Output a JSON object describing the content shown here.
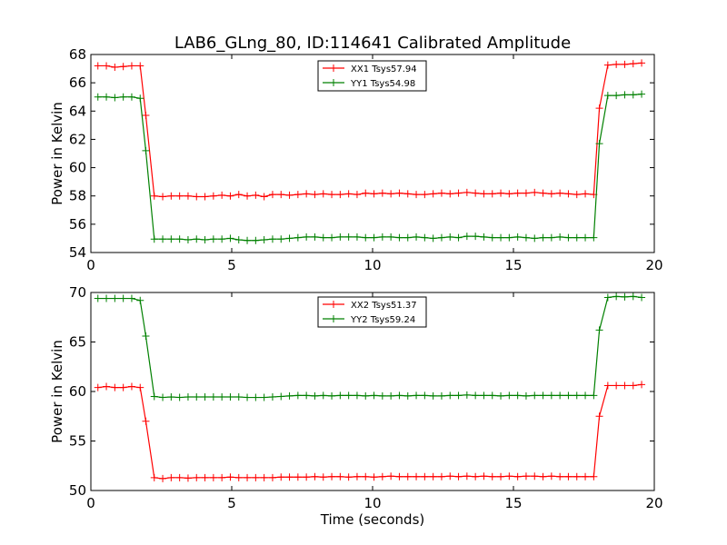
{
  "title": "LAB6_GLng_80, ID:114641 Calibrated Amplitude",
  "chart_data": [
    {
      "type": "line",
      "xlabel": "",
      "ylabel": "Power in Kelvin",
      "xlim": [
        0,
        20
      ],
      "ylim": [
        54,
        68
      ],
      "xticks": [
        0,
        5,
        10,
        15,
        20
      ],
      "yticks": [
        54,
        56,
        58,
        60,
        62,
        64,
        66,
        68
      ],
      "grid": false,
      "legend": "top-center",
      "x": [
        0.25,
        0.55,
        0.85,
        1.15,
        1.45,
        1.75,
        1.95,
        2.25,
        2.55,
        2.85,
        3.15,
        3.45,
        3.75,
        4.05,
        4.35,
        4.65,
        4.95,
        5.25,
        5.55,
        5.85,
        6.15,
        6.45,
        6.75,
        7.05,
        7.35,
        7.65,
        7.95,
        8.25,
        8.55,
        8.85,
        9.15,
        9.45,
        9.75,
        10.05,
        10.35,
        10.65,
        10.95,
        11.25,
        11.55,
        11.85,
        12.15,
        12.45,
        12.75,
        13.05,
        13.35,
        13.65,
        13.95,
        14.25,
        14.55,
        14.85,
        15.15,
        15.45,
        15.75,
        16.05,
        16.35,
        16.65,
        16.95,
        17.25,
        17.55,
        17.85,
        18.05,
        18.35,
        18.65,
        18.95,
        19.25,
        19.55
      ],
      "series": [
        {
          "name": "XX1 Tsys57.94",
          "color": "#ff0000",
          "values": [
            67.2,
            67.2,
            67.1,
            67.15,
            67.2,
            67.2,
            63.7,
            58.0,
            57.95,
            58.0,
            58.0,
            58.0,
            57.95,
            57.95,
            58.0,
            58.05,
            58.0,
            58.1,
            58.0,
            58.05,
            57.95,
            58.1,
            58.1,
            58.05,
            58.1,
            58.15,
            58.1,
            58.15,
            58.1,
            58.1,
            58.15,
            58.1,
            58.2,
            58.15,
            58.2,
            58.15,
            58.2,
            58.15,
            58.1,
            58.1,
            58.15,
            58.2,
            58.15,
            58.2,
            58.25,
            58.2,
            58.15,
            58.15,
            58.2,
            58.15,
            58.2,
            58.2,
            58.25,
            58.2,
            58.15,
            58.2,
            58.15,
            58.1,
            58.15,
            58.1,
            64.2,
            67.25,
            67.3,
            67.3,
            67.35,
            67.4
          ]
        },
        {
          "name": "YY1 Tsys54.98",
          "color": "#008000",
          "values": [
            65.0,
            65.0,
            64.95,
            65.0,
            65.0,
            64.9,
            61.2,
            54.95,
            54.95,
            54.95,
            54.95,
            54.9,
            54.95,
            54.9,
            54.95,
            54.95,
            55.0,
            54.9,
            54.85,
            54.85,
            54.9,
            54.95,
            54.95,
            55.0,
            55.05,
            55.1,
            55.1,
            55.05,
            55.05,
            55.1,
            55.1,
            55.1,
            55.05,
            55.05,
            55.1,
            55.1,
            55.05,
            55.05,
            55.1,
            55.05,
            55.0,
            55.05,
            55.1,
            55.05,
            55.15,
            55.15,
            55.1,
            55.05,
            55.05,
            55.05,
            55.1,
            55.05,
            55.0,
            55.05,
            55.05,
            55.1,
            55.05,
            55.05,
            55.05,
            55.05,
            61.7,
            65.1,
            65.1,
            65.15,
            65.15,
            65.2
          ]
        }
      ]
    },
    {
      "type": "line",
      "xlabel": "Time (seconds)",
      "ylabel": "Power in Kelvin",
      "xlim": [
        0,
        20
      ],
      "ylim": [
        50,
        70
      ],
      "xticks": [
        0,
        5,
        10,
        15,
        20
      ],
      "yticks": [
        50,
        55,
        60,
        65,
        70
      ],
      "grid": false,
      "legend": "top-center",
      "x": [
        0.25,
        0.55,
        0.85,
        1.15,
        1.45,
        1.75,
        1.95,
        2.25,
        2.55,
        2.85,
        3.15,
        3.45,
        3.75,
        4.05,
        4.35,
        4.65,
        4.95,
        5.25,
        5.55,
        5.85,
        6.15,
        6.45,
        6.75,
        7.05,
        7.35,
        7.65,
        7.95,
        8.25,
        8.55,
        8.85,
        9.15,
        9.45,
        9.75,
        10.05,
        10.35,
        10.65,
        10.95,
        11.25,
        11.55,
        11.85,
        12.15,
        12.45,
        12.75,
        13.05,
        13.35,
        13.65,
        13.95,
        14.25,
        14.55,
        14.85,
        15.15,
        15.45,
        15.75,
        16.05,
        16.35,
        16.65,
        16.95,
        17.25,
        17.55,
        17.85,
        18.05,
        18.35,
        18.65,
        18.95,
        19.25,
        19.55
      ],
      "series": [
        {
          "name": "XX2 Tsys51.37",
          "color": "#ff0000",
          "values": [
            60.4,
            60.5,
            60.4,
            60.4,
            60.5,
            60.4,
            57.0,
            51.3,
            51.2,
            51.3,
            51.3,
            51.25,
            51.3,
            51.3,
            51.3,
            51.3,
            51.35,
            51.3,
            51.3,
            51.3,
            51.3,
            51.3,
            51.35,
            51.35,
            51.35,
            51.35,
            51.4,
            51.35,
            51.4,
            51.4,
            51.35,
            51.4,
            51.4,
            51.35,
            51.4,
            51.45,
            51.4,
            51.4,
            51.4,
            51.4,
            51.4,
            51.4,
            51.45,
            51.4,
            51.45,
            51.4,
            51.45,
            51.4,
            51.4,
            51.45,
            51.4,
            51.45,
            51.45,
            51.4,
            51.45,
            51.4,
            51.4,
            51.4,
            51.4,
            51.4,
            57.5,
            60.6,
            60.6,
            60.6,
            60.6,
            60.7
          ]
        },
        {
          "name": "YY2 Tsys59.24",
          "color": "#008000",
          "values": [
            69.4,
            69.4,
            69.4,
            69.4,
            69.4,
            69.2,
            65.6,
            59.5,
            59.4,
            59.45,
            59.4,
            59.45,
            59.45,
            59.45,
            59.45,
            59.45,
            59.45,
            59.45,
            59.4,
            59.4,
            59.4,
            59.45,
            59.5,
            59.55,
            59.6,
            59.6,
            59.55,
            59.6,
            59.55,
            59.6,
            59.6,
            59.6,
            59.55,
            59.6,
            59.55,
            59.55,
            59.6,
            59.55,
            59.6,
            59.6,
            59.55,
            59.55,
            59.6,
            59.6,
            59.65,
            59.6,
            59.6,
            59.6,
            59.55,
            59.6,
            59.6,
            59.55,
            59.6,
            59.6,
            59.6,
            59.6,
            59.6,
            59.6,
            59.6,
            59.6,
            66.2,
            69.5,
            69.6,
            69.55,
            69.6,
            69.5
          ]
        }
      ]
    }
  ]
}
